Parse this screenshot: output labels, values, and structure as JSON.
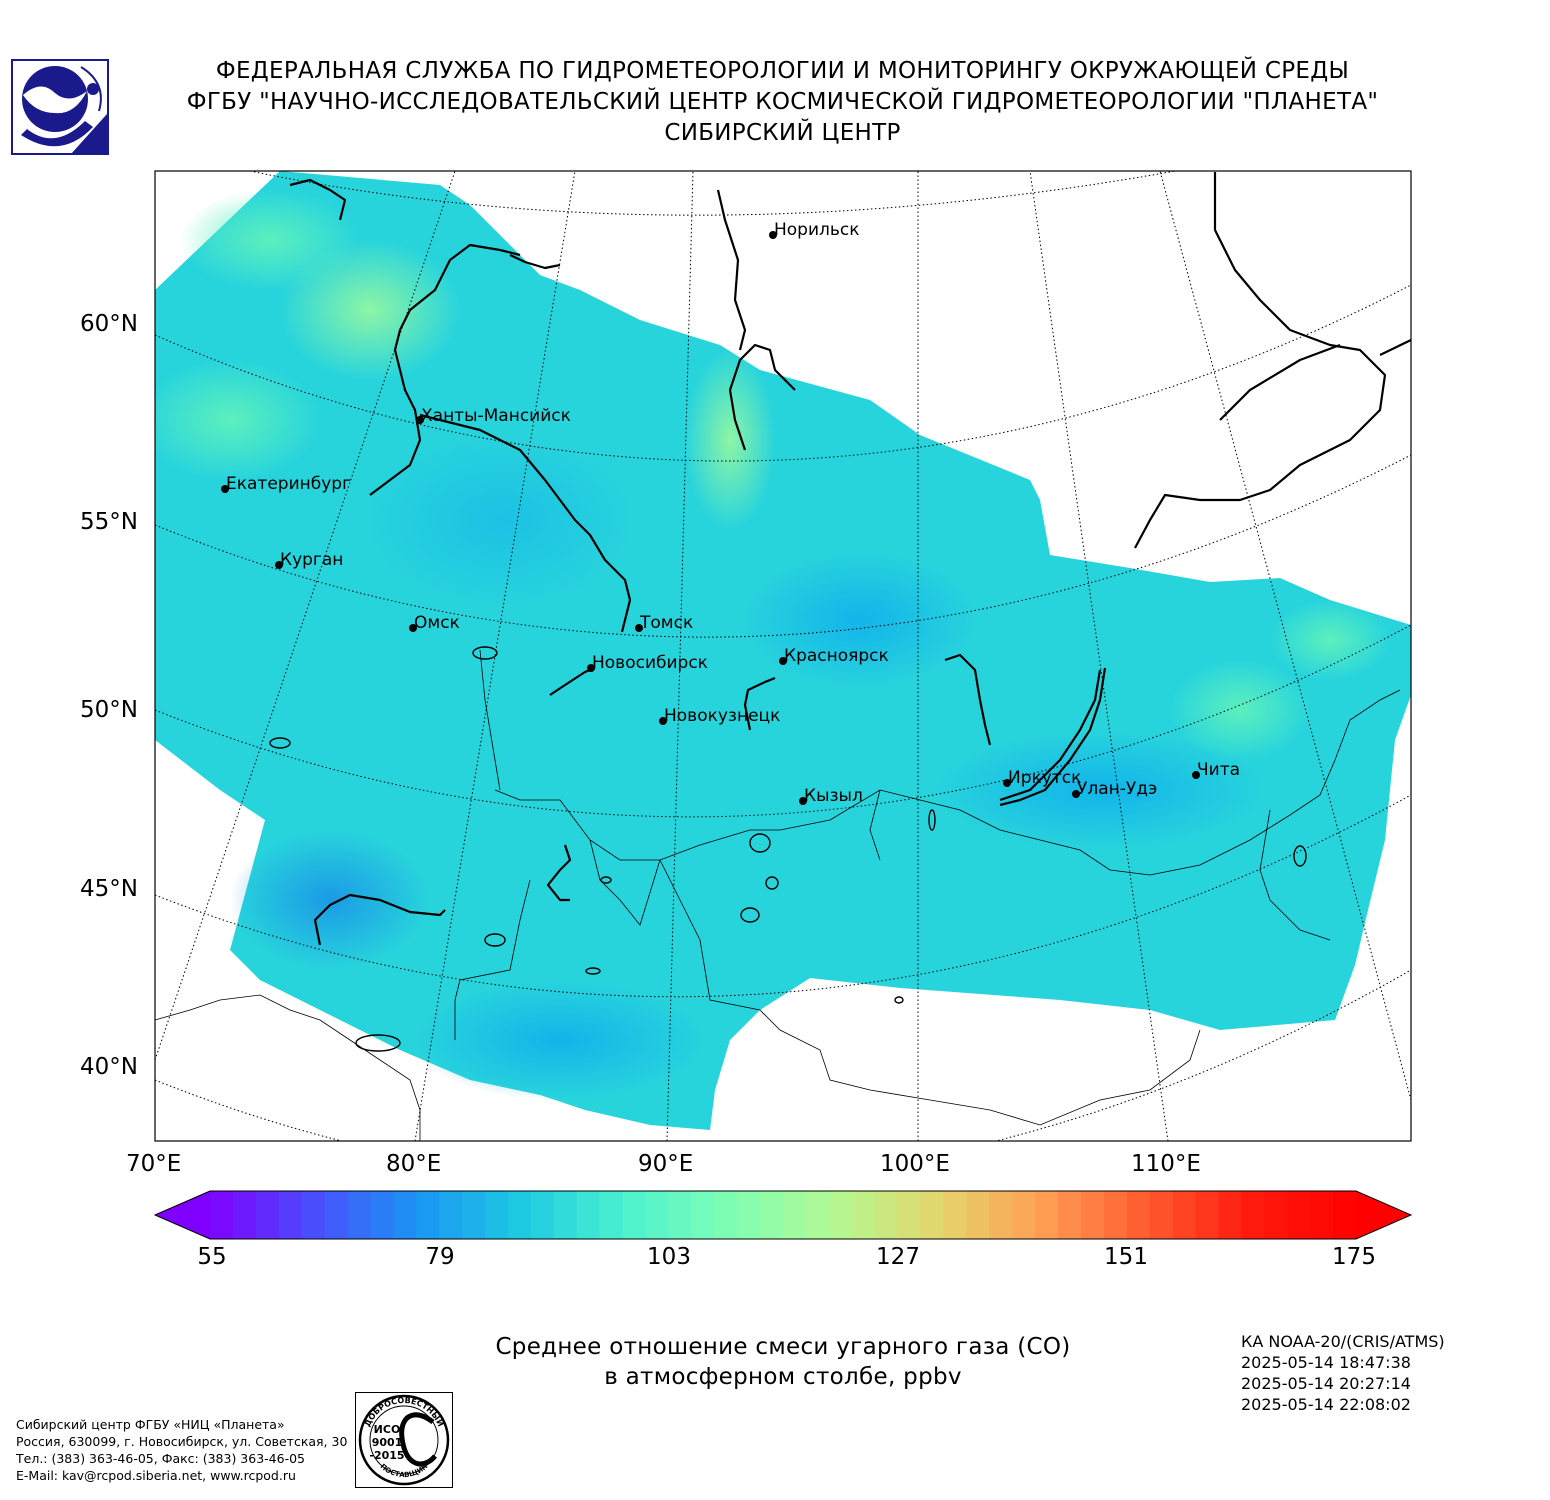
{
  "header": {
    "line1": "ФЕДЕРАЛЬНАЯ СЛУЖБА ПО ГИДРОМЕТЕОРОЛОГИИ И МОНИТОРИНГУ ОКРУЖАЮЩЕЙ СРЕДЫ",
    "line2": "ФГБУ \"НАУЧНО-ИССЛЕДОВАТЕЛЬСКИЙ ЦЕНТР КОСМИЧЕСКОЙ ГИДРОМЕТЕОРОЛОГИИ \"ПЛАНЕТА\"",
    "line3": "СИБИРСКИЙ ЦЕНТР"
  },
  "map": {
    "lat_labels": [
      "60°N",
      "55°N",
      "50°N",
      "45°N",
      "40°N"
    ],
    "lon_labels": [
      "70°E",
      "80°E",
      "90°E",
      "100°E",
      "110°E"
    ],
    "cities": [
      {
        "name": "Норильск"
      },
      {
        "name": "Ханты-Мансийск"
      },
      {
        "name": "Екатеринбург"
      },
      {
        "name": "Курган"
      },
      {
        "name": "Омск"
      },
      {
        "name": "Томск"
      },
      {
        "name": "Новосибирск"
      },
      {
        "name": "Красноярск"
      },
      {
        "name": "Новокузнецк"
      },
      {
        "name": "Кызыл"
      },
      {
        "name": "Иркутск"
      },
      {
        "name": "Улан-Удэ"
      },
      {
        "name": "Чита"
      }
    ]
  },
  "colorbar": {
    "min": 55,
    "max": 175,
    "ticks": [
      "55",
      "79",
      "103",
      "127",
      "151",
      "175"
    ],
    "colors": [
      "#7f00ff",
      "#4a4ffd",
      "#1996f3",
      "#1ecbe1",
      "#4df2cf",
      "#80feb3",
      "#b4f893",
      "#e4d66c",
      "#ff9d54",
      "#ff5a2f",
      "#ff1a0d",
      "#ff0000"
    ]
  },
  "caption": {
    "line1": "Среднее отношение смеси угарного газа (СО)",
    "line2": "в атмосферном столбе, ppbv"
  },
  "satellite": {
    "name": "КА NOAA-20/(CRIS/ATMS)",
    "times": [
      "2025-05-14 18:47:38",
      "2025-05-14 20:27:14",
      "2025-05-14 22:08:02"
    ]
  },
  "contacts": {
    "line1": "Сибирский центр ФГБУ «НИЦ «Планета»",
    "line2": "Россия, 630099, г. Новосибирск, ул. Советская, 30",
    "line3": "Тел.: (383) 363-46-05, Факс: (383) 363-46-05",
    "line4": "E-Mail: kav@rcpod.siberia.net, www.rcpod.ru"
  },
  "iso_stamp": {
    "top_text": "ДОБРОСОВЕСТНЫЙ",
    "middle_text_1": "ИСО",
    "middle_text_2": "9001",
    "middle_text_3": "-2015",
    "bottom_text": "ПОСТАВЩИК"
  }
}
